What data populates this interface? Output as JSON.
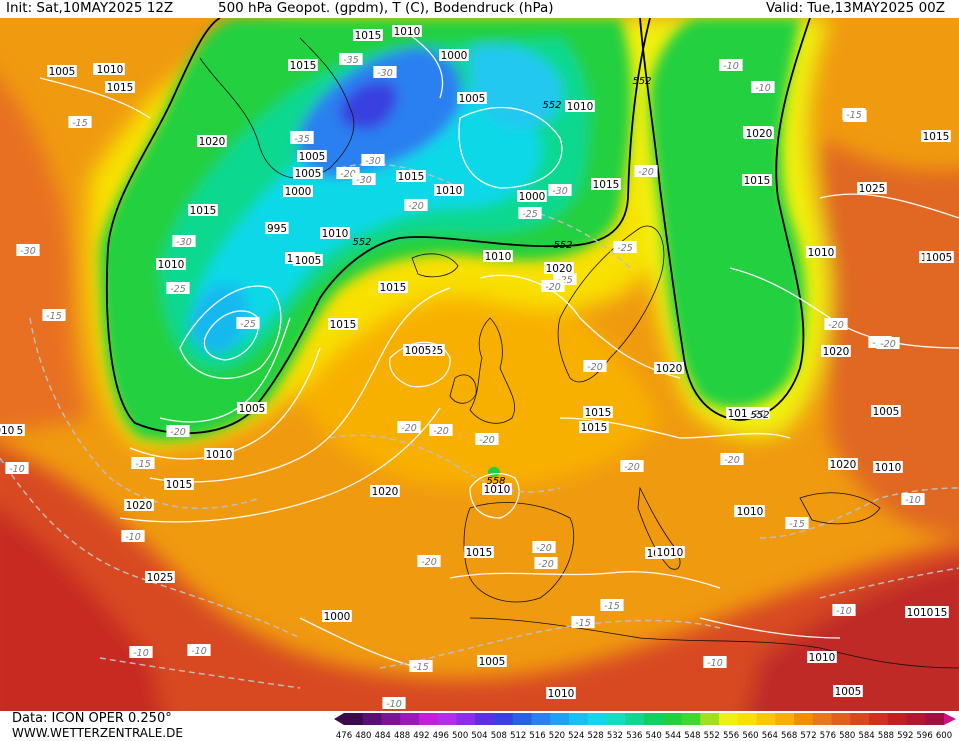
{
  "header": {
    "init": "Init: Sat,10MAY2025 12Z",
    "title": "500 hPa Geopot. (gpdm), T (C), Bodendruck (hPa)",
    "valid": "Valid: Tue,13MAY2025 00Z"
  },
  "footer": {
    "data": "Data: ICON OPER 0.250°",
    "site": "WWW.WETTERZENTRALE.DE"
  },
  "colorbar": {
    "ticks": [
      "476",
      "480",
      "484",
      "488",
      "492",
      "496",
      "500",
      "504",
      "508",
      "512",
      "516",
      "520",
      "524",
      "528",
      "532",
      "536",
      "540",
      "544",
      "548",
      "552",
      "556",
      "560",
      "564",
      "568",
      "572",
      "576",
      "580",
      "584",
      "588",
      "592",
      "596",
      "600"
    ],
    "colors": [
      "#3a0a4a",
      "#5a1070",
      "#7a1595",
      "#9a1ab8",
      "#c020d8",
      "#b030e8",
      "#8c2ee8",
      "#5a30e0",
      "#3840e0",
      "#2b60e0",
      "#2c80f0",
      "#20a0f0",
      "#18c0f0",
      "#10d8e8",
      "#10e0c0",
      "#10d890",
      "#10d060",
      "#20d040",
      "#40d830",
      "#a0e020",
      "#f0f010",
      "#f8e000",
      "#f8c800",
      "#f8b000",
      "#f09000",
      "#e87820",
      "#e06020",
      "#d84820",
      "#d03020",
      "#c02020",
      "#b01830",
      "#a01040"
    ]
  },
  "map_labels": {
    "isobars": [
      "1005",
      "1010",
      "1015",
      "1015",
      "1010",
      "1020",
      "1015",
      "1000",
      "1005",
      "1000",
      "1005",
      "1010",
      "1015",
      "1005",
      "1000",
      "1010",
      "1015",
      "1010",
      "1015",
      "1000",
      "1010",
      "1005",
      "995",
      "1010",
      "1005",
      "1025",
      "1020",
      "1015",
      "1005",
      "1010",
      "1015",
      "1015",
      "1010",
      "1020",
      "1015",
      "1000",
      "1005",
      "1020",
      "1025",
      "1010",
      "1015",
      "1020",
      "1010",
      "1015",
      "1020",
      "1015",
      "1025",
      "1010",
      "1015",
      "1010",
      "1020",
      "1015",
      "1005",
      "1010",
      "1020",
      "1015",
      "1010",
      "1005",
      "1010",
      "1005",
      "1010",
      "1010",
      "1025",
      "1010",
      "1010",
      "1010",
      "1020",
      "1005",
      "1010",
      "1015"
    ],
    "temps": [
      "-15",
      "-15",
      "-35",
      "-30",
      "-20",
      "-20",
      "-30",
      "-35",
      "-30",
      "-25",
      "-25",
      "-25",
      "-30",
      "-25",
      "-20",
      "-20",
      "-20",
      "-20",
      "-20",
      "-20",
      "-20",
      "-20",
      "-15",
      "-15",
      "-15",
      "-10",
      "-10",
      "-10",
      "-10",
      "-10",
      "-10",
      "-15",
      "-15",
      "-10",
      "-20",
      "-20",
      "-20",
      "-25",
      "-20",
      "-10",
      "-10",
      "-15",
      "-15",
      "-15",
      "-20",
      "-20",
      "-30",
      "-30",
      "-35",
      "-20",
      "-10"
    ],
    "geopot": [
      "552",
      "552",
      "552",
      "552",
      "558",
      "552"
    ]
  }
}
